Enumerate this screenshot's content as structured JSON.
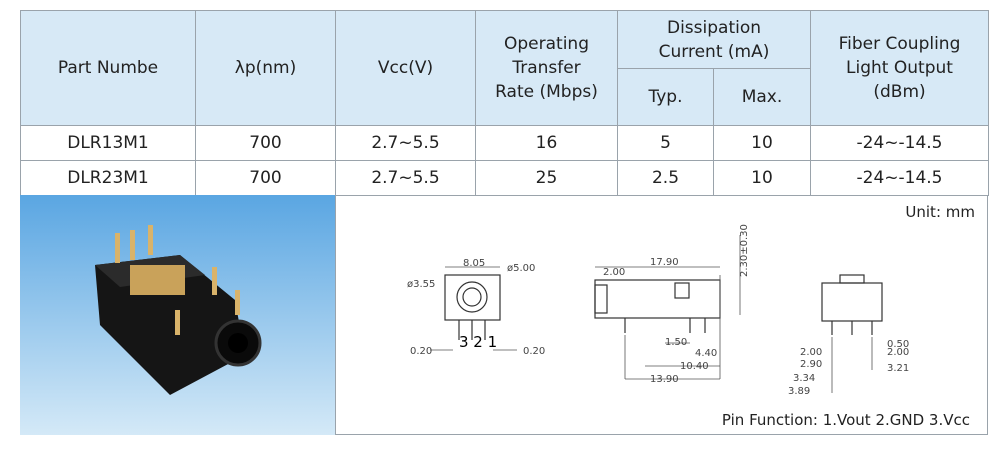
{
  "table": {
    "headers": [
      [
        "Part Numbe"
      ],
      [
        "λp(nm)"
      ],
      [
        "Vcc(V)"
      ],
      [
        "Operating",
        "Transfer",
        "Rate (Mbps)"
      ],
      [
        "Dissipation",
        "Current (mA)"
      ],
      [
        "Fiber Coupling",
        "Light Output",
        "(dBm)"
      ]
    ],
    "subheaders": [
      "Typ.",
      "Max."
    ],
    "rows": [
      [
        "DLR13M1",
        "700",
        "2.7~5.5",
        "16",
        "5",
        "10",
        "-24~-14.5"
      ],
      [
        "DLR23M1",
        "700",
        "2.7~5.5",
        "25",
        "2.5",
        "10",
        "-24~-14.5"
      ]
    ]
  },
  "drawing": {
    "unit": "Unit:  mm",
    "pin_function": "Pin Function: 1.Vout   2.GND   3.Vcc",
    "labels": [
      "ø3.55",
      "8.05",
      "ø5.00",
      "0.20",
      "3 2 1",
      "0.20",
      "17.90",
      "2.00",
      "2.30±0.30",
      "1.50",
      "4.40",
      "10.40",
      "13.90",
      "0.50",
      "2.00",
      "2.00",
      "2.90",
      "3.21",
      "3.34",
      "3.89"
    ]
  }
}
